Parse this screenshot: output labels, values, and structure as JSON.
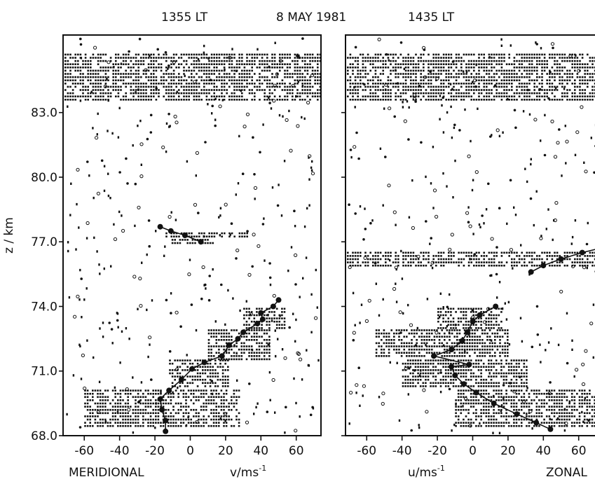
{
  "header": {
    "left_time": "1355 LT",
    "date": "8 MAY 1981",
    "right_time": "1435 LT"
  },
  "chart_data": [
    {
      "type": "scatter",
      "name": "left-panel",
      "bottom_left_label": "MERIDIONAL",
      "xlabel": "v/ms",
      "xlabel_sup": "-1",
      "ylabel": "z / km",
      "xlim": [
        -72,
        74
      ],
      "ylim": [
        68,
        86.6
      ],
      "xticks": [
        "-60",
        "-40",
        "-20",
        "0",
        "20",
        "40",
        "60"
      ],
      "xtick_values": [
        -60,
        -40,
        -20,
        0,
        20,
        40,
        60
      ],
      "yticks": [
        "68.0",
        "71.0",
        "74.0",
        "77.0",
        "80.0",
        "83.0"
      ],
      "ytick_values": [
        68,
        71,
        74,
        77,
        80,
        83
      ],
      "profile": [
        {
          "x": -14,
          "y": 68.2
        },
        {
          "x": -14,
          "y": 68.7
        },
        {
          "x": -16,
          "y": 69.2
        },
        {
          "x": -17,
          "y": 69.7
        },
        {
          "x": -12,
          "y": 70.1
        },
        {
          "x": -5,
          "y": 70.6
        },
        {
          "x": 1,
          "y": 71.1
        },
        {
          "x": 8,
          "y": 71.4
        },
        {
          "x": 18,
          "y": 71.7
        },
        {
          "x": 22,
          "y": 72.2
        },
        {
          "x": 27,
          "y": 72.5
        },
        {
          "x": 30,
          "y": 72.8
        },
        {
          "x": 38,
          "y": 73.2
        },
        {
          "x": 41,
          "y": 73.4
        },
        {
          "x": 40,
          "y": 73.7
        },
        {
          "x": 47,
          "y": 74.0
        },
        {
          "x": 50,
          "y": 74.3
        }
      ],
      "upper_profile": [
        {
          "x": -17,
          "y": 77.7
        },
        {
          "x": -11,
          "y": 77.5
        },
        {
          "x": -3,
          "y": 77.3
        },
        {
          "x": 6,
          "y": 77.0
        }
      ],
      "echo_bands": [
        {
          "y_from": 83.6,
          "y_to": 85.8,
          "x_from": -72,
          "x_to": 74
        },
        {
          "y_from": 77.2,
          "y_to": 77.5,
          "x_from": -14,
          "x_to": 32
        },
        {
          "y_from": 76.9,
          "y_to": 77.2,
          "x_from": -12,
          "x_to": 15
        },
        {
          "y_from": 73.0,
          "y_to": 74.0,
          "x_from": 30,
          "x_to": 54
        },
        {
          "y_from": 71.5,
          "y_to": 73.0,
          "x_from": 10,
          "x_to": 45
        },
        {
          "y_from": 70.2,
          "y_to": 71.6,
          "x_from": -12,
          "x_to": 22
        },
        {
          "y_from": 68.4,
          "y_to": 70.2,
          "x_from": -60,
          "x_to": 28
        }
      ]
    },
    {
      "type": "scatter",
      "name": "right-panel",
      "bottom_right_label": "ZONAL",
      "xlabel": "u/ms",
      "xlabel_sup": "-1",
      "xlim": [
        -72,
        74
      ],
      "ylim": [
        68,
        86.6
      ],
      "xticks": [
        "-60",
        "-40",
        "-20",
        "0",
        "20",
        "40",
        "60"
      ],
      "xtick_values": [
        -60,
        -40,
        -20,
        0,
        20,
        40,
        60
      ],
      "profile": [
        {
          "x": 44,
          "y": 68.3
        },
        {
          "x": 36,
          "y": 68.6
        },
        {
          "x": 25,
          "y": 69.0
        },
        {
          "x": 12,
          "y": 69.5
        },
        {
          "x": 2,
          "y": 70.0
        },
        {
          "x": -5,
          "y": 70.4
        },
        {
          "x": -10,
          "y": 70.8
        },
        {
          "x": -12,
          "y": 71.2
        },
        {
          "x": -2,
          "y": 71.3
        },
        {
          "x": -22,
          "y": 71.7
        },
        {
          "x": -12,
          "y": 72.0
        },
        {
          "x": -6,
          "y": 72.4
        },
        {
          "x": -3,
          "y": 72.8
        },
        {
          "x": 0,
          "y": 73.3
        },
        {
          "x": 4,
          "y": 73.6
        },
        {
          "x": 13,
          "y": 74.0
        }
      ],
      "upper_profile": [
        {
          "x": 33,
          "y": 75.6
        },
        {
          "x": 40,
          "y": 75.9
        },
        {
          "x": 50,
          "y": 76.2
        },
        {
          "x": 62,
          "y": 76.5
        },
        {
          "x": 72,
          "y": 76.7
        }
      ],
      "echo_bands": [
        {
          "y_from": 83.6,
          "y_to": 85.8,
          "x_from": -72,
          "x_to": 74
        },
        {
          "y_from": 75.8,
          "y_to": 76.6,
          "x_from": -72,
          "x_to": 74
        },
        {
          "y_from": 73.0,
          "y_to": 74.0,
          "x_from": -20,
          "x_to": 16
        },
        {
          "y_from": 71.6,
          "y_to": 73.0,
          "x_from": -55,
          "x_to": 20
        },
        {
          "y_from": 70.2,
          "y_to": 71.6,
          "x_from": -40,
          "x_to": 30
        },
        {
          "y_from": 68.4,
          "y_to": 70.2,
          "x_from": -10,
          "x_to": 70
        }
      ]
    }
  ]
}
